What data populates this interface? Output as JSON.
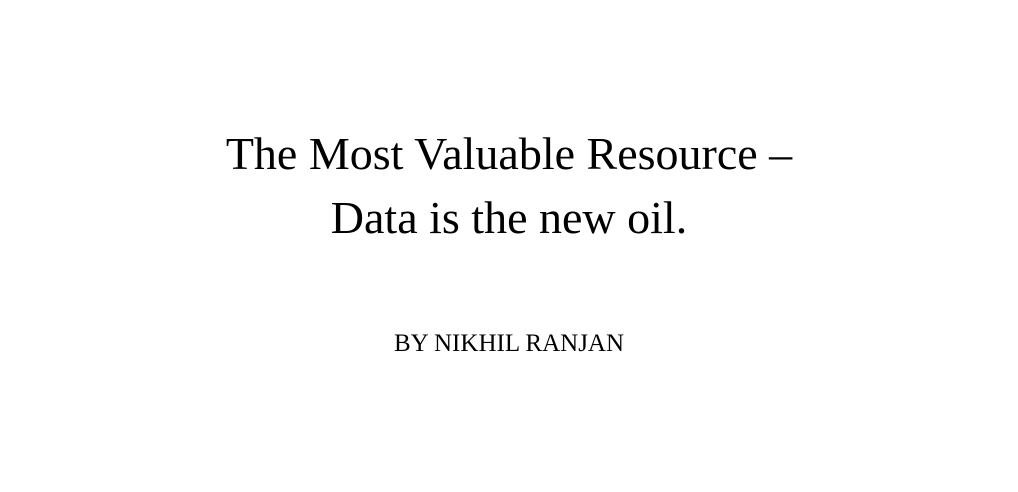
{
  "document": {
    "title_line_1": "The Most Valuable Resource –",
    "title_line_2": "Data is the new oil.",
    "byline": "BY NIKHIL RANJAN"
  },
  "colors": {
    "background": "#ffffff",
    "text": "#000000"
  }
}
